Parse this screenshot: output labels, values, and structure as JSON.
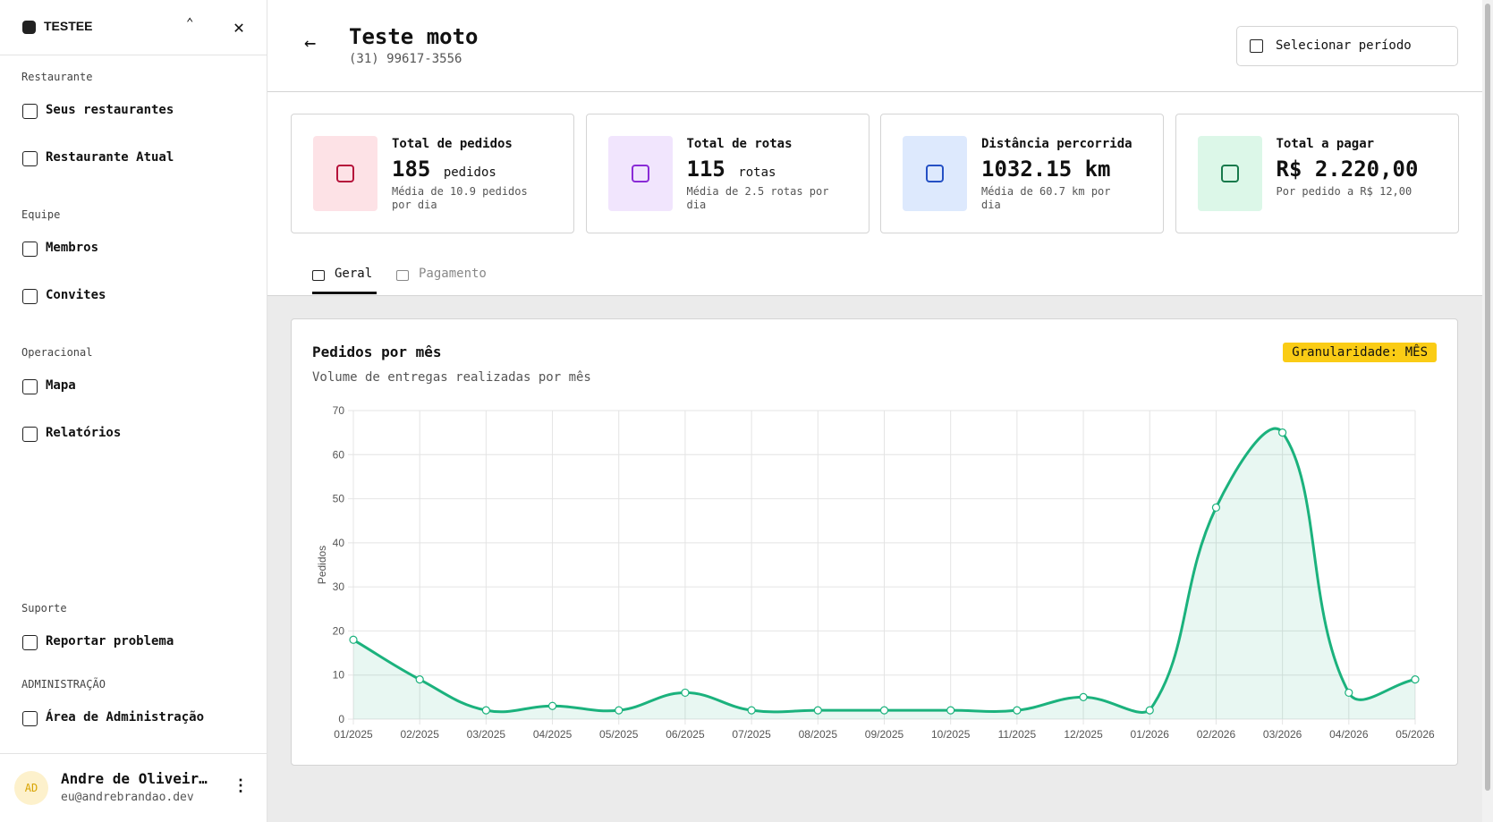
{
  "sidebar": {
    "workspace": "TESTEE",
    "sections": [
      {
        "title": "Restaurante",
        "items": [
          "Seus restaurantes",
          "Restaurante Atual"
        ]
      },
      {
        "title": "Equipe",
        "items": [
          "Membros",
          "Convites"
        ]
      },
      {
        "title": "Operacional",
        "items": [
          "Mapa",
          "Relatórios"
        ]
      }
    ],
    "support": {
      "title": "Suporte",
      "items": [
        "Reportar problema"
      ]
    },
    "admin": {
      "title": "ADMINISTRAÇÃO",
      "items": [
        "Área de Administração"
      ]
    },
    "user": {
      "initials": "AD",
      "name": "Andre de Oliveir…",
      "email": "eu@andrebrandao.dev"
    }
  },
  "header": {
    "title": "Teste moto",
    "phone": "(31) 99617-3556",
    "button": "Selecionar período"
  },
  "stats": [
    {
      "label": "Total de pedidos",
      "value": "185",
      "unit": "pedidos",
      "note": "Média de 10.9 pedidos por dia"
    },
    {
      "label": "Total de rotas",
      "value": "115",
      "unit": "rotas",
      "note": "Média de 2.5 rotas por dia"
    },
    {
      "label": "Distância percorrida",
      "value": "1032.15 km",
      "note": "Média de 60.7 km por dia"
    },
    {
      "label": "Total a pagar",
      "value": "R$ 2.220,00",
      "note": "Por pedido a R$ 12,00"
    }
  ],
  "tabs": [
    "Geral",
    "Pagamento"
  ],
  "chart_data": {
    "type": "line",
    "title": "Pedidos por mês",
    "subtitle": "Volume de entregas realizadas por mês",
    "badge": "Granularidade: MÊS",
    "y_label": "Pedidos",
    "categories": [
      "01/2025",
      "02/2025",
      "03/2025",
      "04/2025",
      "05/2025",
      "06/2025",
      "07/2025",
      "08/2025",
      "09/2025",
      "10/2025",
      "11/2025",
      "12/2025",
      "01/2026",
      "02/2026",
      "03/2026",
      "04/2026",
      "05/2026"
    ],
    "series": [
      {
        "name": "Pedidos",
        "color": "#1bb27d",
        "values": [
          18,
          9,
          2,
          3,
          2,
          6,
          2,
          2,
          2,
          2,
          2,
          5,
          2,
          48,
          65,
          6,
          9
        ]
      }
    ],
    "ylim": [
      0,
      70
    ],
    "yticks": [
      0,
      10,
      20,
      30,
      40,
      50,
      60,
      70
    ],
    "grid": true
  }
}
